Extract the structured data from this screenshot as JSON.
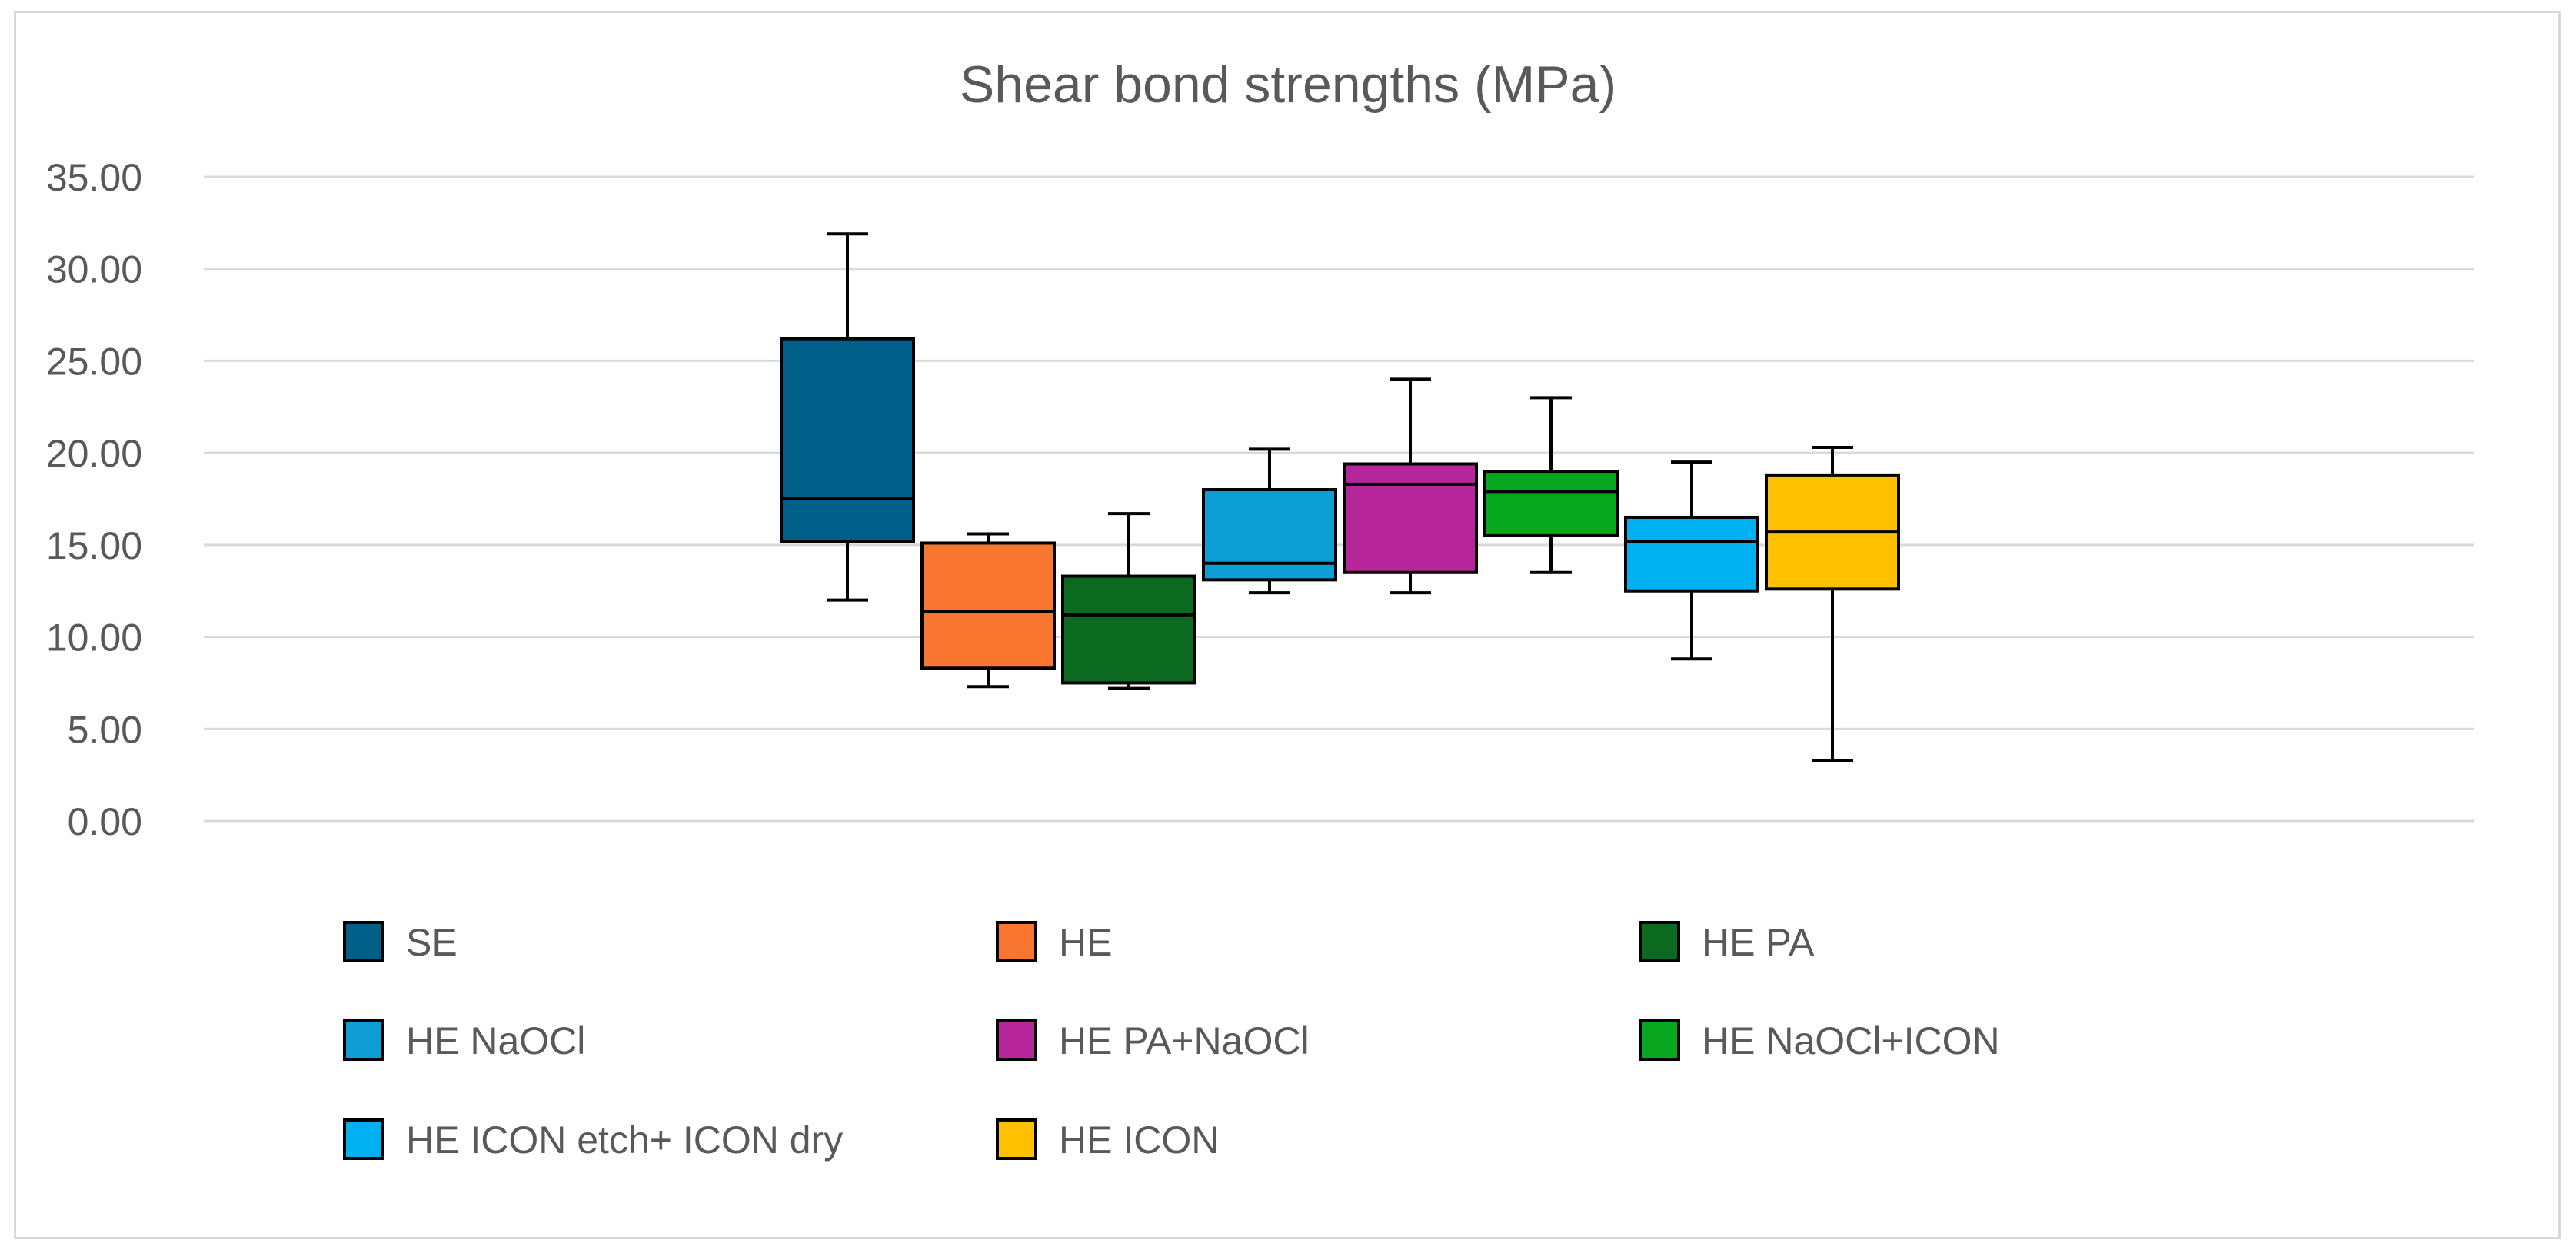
{
  "chart_data": {
    "type": "boxplot",
    "title": "Shear bond strengths (MPa)",
    "xlabel": "",
    "ylabel": "",
    "ylim": [
      0,
      35
    ],
    "y_ticks": [
      "0.00",
      "5.00",
      "10.00",
      "15.00",
      "20.00",
      "25.00",
      "30.00",
      "35.00"
    ],
    "grid": true,
    "legend_position": "bottom",
    "series": [
      {
        "name": "SE",
        "color": "#005F89",
        "min": 12.0,
        "q1": 15.2,
        "median": 17.5,
        "q3": 26.2,
        "max": 31.9
      },
      {
        "name": "HE",
        "color": "#F97630",
        "min": 7.3,
        "q1": 8.3,
        "median": 11.4,
        "q3": 15.1,
        "max": 15.6
      },
      {
        "name": "HE PA",
        "color": "#0B6A1F",
        "min": 7.2,
        "q1": 7.5,
        "median": 11.2,
        "q3": 13.3,
        "max": 16.7
      },
      {
        "name": "HE NaOCl",
        "color": "#0C9ED4",
        "min": 12.4,
        "q1": 13.1,
        "median": 14.0,
        "q3": 18.0,
        "max": 20.2
      },
      {
        "name": "HE PA+NaOCl",
        "color": "#B62599",
        "min": 12.4,
        "q1": 13.5,
        "median": 18.3,
        "q3": 19.4,
        "max": 24.0
      },
      {
        "name": "HE NaOCl+ICON",
        "color": "#07A81F",
        "min": 13.5,
        "q1": 15.5,
        "median": 17.9,
        "q3": 19.0,
        "max": 23.0
      },
      {
        "name": "HE ICON etch+ ICON dry",
        "color": "#00B0F0",
        "min": 8.8,
        "q1": 12.5,
        "median": 15.2,
        "q3": 16.5,
        "max": 19.5
      },
      {
        "name": "HE ICON",
        "color": "#FFC000",
        "min": 3.3,
        "q1": 12.6,
        "median": 15.7,
        "q3": 18.8,
        "max": 20.3
      }
    ]
  }
}
